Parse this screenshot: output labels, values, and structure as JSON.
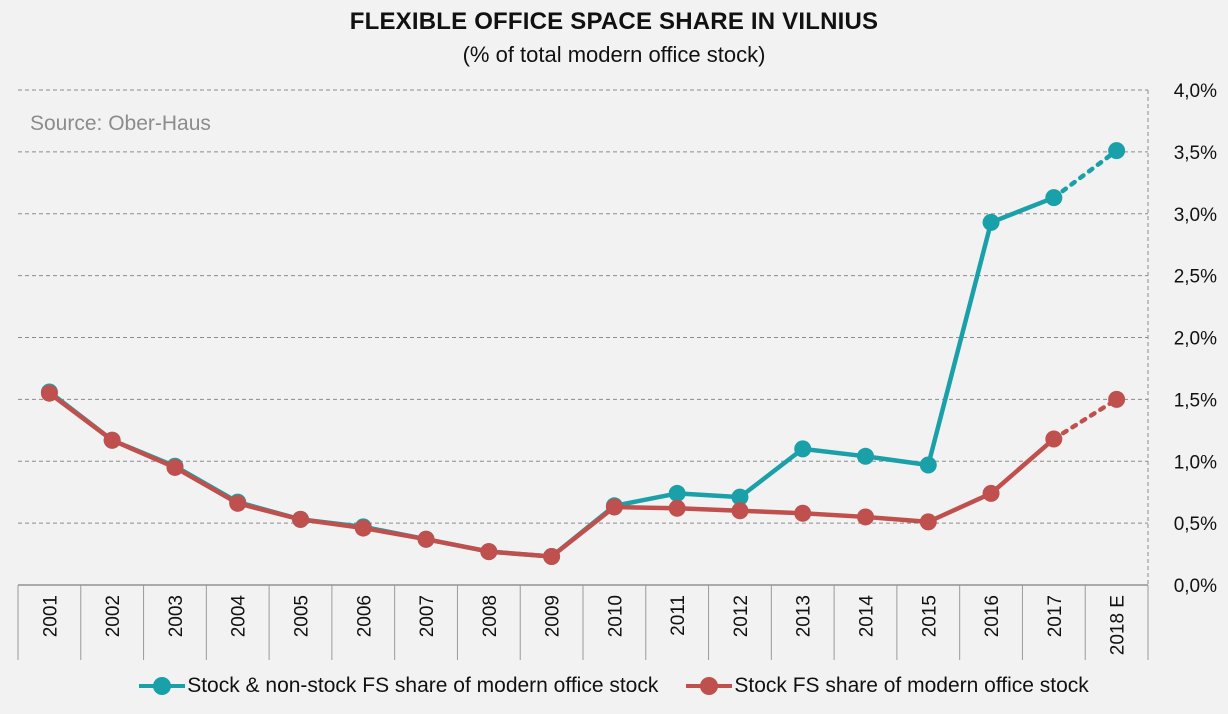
{
  "title": "FLEXIBLE OFFICE SPACE SHARE IN VILNIUS",
  "subtitle": "(% of total modern office stock)",
  "source": "Source: Ober-Haus",
  "colors": {
    "teal": "#1aa0a8",
    "red": "#c0504d",
    "grid": "#8c8c8c",
    "background": "#f2f2f2"
  },
  "legend": [
    {
      "label": "Stock & non-stock FS share of modern office stock",
      "color": "#1aa0a8"
    },
    {
      "label": "Stock FS share of modern office stock",
      "color": "#c0504d"
    }
  ],
  "chart_data": {
    "type": "line",
    "categories": [
      "2001",
      "2002",
      "2003",
      "2004",
      "2005",
      "2006",
      "2007",
      "2008",
      "2009",
      "2010",
      "2011",
      "2012",
      "2013",
      "2014",
      "2015",
      "2016",
      "2017",
      "2018 E"
    ],
    "yticks": [
      "0,0%",
      "0,5%",
      "1,0%",
      "1,5%",
      "2,0%",
      "2,5%",
      "3,0%",
      "3,5%",
      "4,0%"
    ],
    "ylim": [
      0,
      4.0
    ],
    "y_axis_side": "right",
    "grid": "horizontal dashed",
    "legend_position": "bottom",
    "series": [
      {
        "name": "Stock & non-stock FS share of modern office stock",
        "color": "#1aa0a8",
        "values": [
          1.56,
          1.17,
          0.96,
          0.67,
          0.53,
          0.47,
          0.37,
          0.27,
          0.23,
          0.64,
          0.74,
          0.71,
          1.1,
          1.04,
          0.97,
          2.93,
          3.13,
          3.51
        ],
        "estimate_from_index": 16
      },
      {
        "name": "Stock FS share of modern office stock",
        "color": "#c0504d",
        "values": [
          1.55,
          1.17,
          0.95,
          0.66,
          0.53,
          0.46,
          0.37,
          0.27,
          0.23,
          0.63,
          0.62,
          0.6,
          0.58,
          0.55,
          0.51,
          0.74,
          1.18,
          1.5
        ],
        "estimate_from_index": 16
      }
    ]
  }
}
